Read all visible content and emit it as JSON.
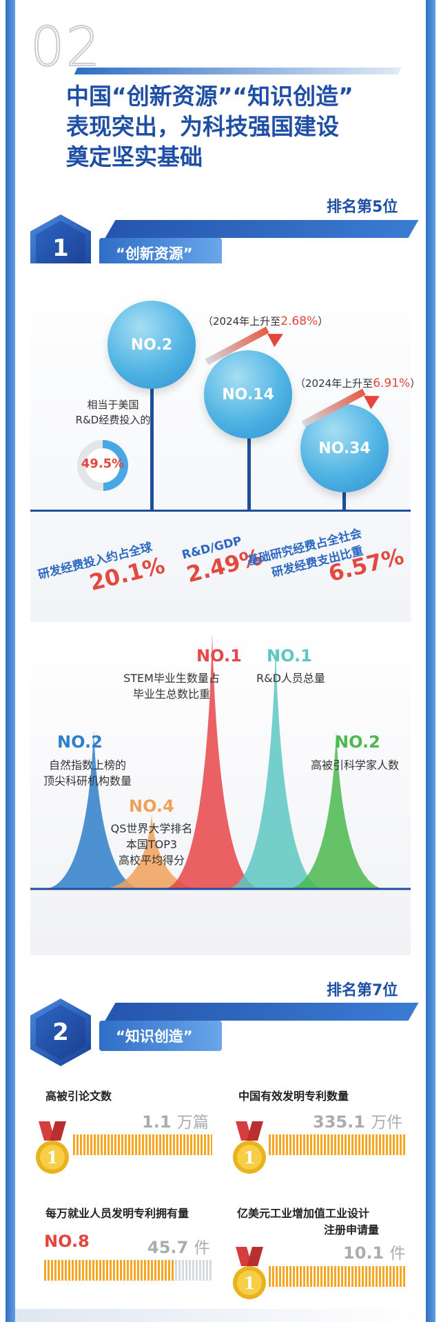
{
  "section_number": "02",
  "title_lines": [
    "中国“创新资源”“知识创造”",
    "表现突出，为科技强国建设",
    "奠定坚实基础"
  ],
  "colors": {
    "primary_blue": "#1f4fa5",
    "accent_red": "#e5453a",
    "bar_orange": "#f5a623"
  },
  "section1": {
    "rank": "排名第5位",
    "hex_number": "1",
    "pill_label": "“创新资源”",
    "circles": [
      {
        "rank": "NO.2",
        "metric": "研发经费投入约占全球",
        "value": "20.1%"
      },
      {
        "rank": "NO.14",
        "metric": "R&D/GDP",
        "value": "2.49%",
        "note_prefix": "（2024年上升至",
        "note_value": "2.68%",
        "note_suffix": "）"
      },
      {
        "rank": "NO.34",
        "metric_line1": "基础研究经费占全社会",
        "metric_line2": "研发经费支出比重",
        "value": "6.57%",
        "note_prefix": "（2024年上升至",
        "note_value": "6.91%",
        "note_suffix": "）"
      }
    ],
    "donut": {
      "label_line1": "相当于美国",
      "label_line2": "R&D经费投入的",
      "value_text": "49.5%",
      "value": 49.5
    }
  },
  "peaks": [
    {
      "rank": "NO.2",
      "color": "#2f7fc9",
      "label_line1": "自然指数上榜的",
      "label_line2": "顶尖科研机构数量",
      "level": 0.62
    },
    {
      "rank": "NO.4",
      "color": "#f0a05a",
      "label_line1": "QS世界大学排名",
      "label_line2": "本国TOP3",
      "label_line3": "高校平均得分",
      "level": 0.29
    },
    {
      "rank": "NO.1",
      "color": "#e8474a",
      "label_line1": "STEM毕业生数量占",
      "label_line2": "毕业生总数比重",
      "level": 1.0
    },
    {
      "rank": "NO.1",
      "color": "#5dc7c2",
      "label_line1": "R&D人员总量",
      "level": 0.95
    },
    {
      "rank": "NO.2",
      "color": "#4cb84e",
      "label_line1": "高被引科学家人数",
      "level": 0.62
    }
  ],
  "section2": {
    "rank": "排名第7位",
    "hex_number": "2",
    "pill_label": "“知识创造”",
    "stats": [
      {
        "label": "高被引论文数",
        "value": "1.1",
        "unit": "万篇",
        "rank_badge": "1",
        "fill": 1.0
      },
      {
        "label": "中国有效发明专利数量",
        "value": "335.1",
        "unit": "万件",
        "rank_badge": "1",
        "fill": 1.0
      },
      {
        "label": "每万就业人员发明专利拥有量",
        "rank_text": "NO.8",
        "value": "45.7",
        "unit": "件",
        "fill": 0.78
      },
      {
        "label_line1": "亿美元工业增加值工业设计",
        "label_line2": "注册申请量",
        "value": "10.1",
        "unit": "件",
        "rank_badge": "1",
        "fill": 1.0
      }
    ]
  }
}
